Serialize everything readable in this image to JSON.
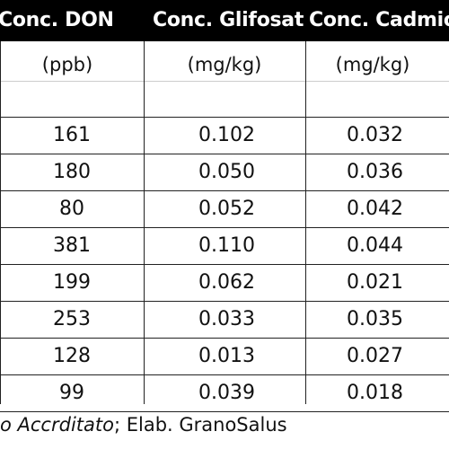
{
  "header": {
    "col_don": "Conc. DON",
    "col_glifosato": "Conc. Glifosato",
    "col_cadmio": "Conc. Cadmio"
  },
  "units": {
    "don": "(ppb)",
    "glifosato": "(mg/kg)",
    "cadmio": "(mg/kg)"
  },
  "rows": [
    {
      "don": "161",
      "glifosato": "0.102",
      "cadmio": "0.032"
    },
    {
      "don": "180",
      "glifosato": "0.050",
      "cadmio": "0.036"
    },
    {
      "don": "80",
      "glifosato": "0.052",
      "cadmio": "0.042"
    },
    {
      "don": "381",
      "glifosato": "0.110",
      "cadmio": "0.044"
    },
    {
      "don": "199",
      "glifosato": "0.062",
      "cadmio": "0.021"
    },
    {
      "don": "253",
      "glifosato": "0.033",
      "cadmio": "0.035"
    },
    {
      "don": "128",
      "glifosato": "0.013",
      "cadmio": "0.027"
    },
    {
      "don": "99",
      "glifosato": "0.039",
      "cadmio": "0.018"
    }
  ],
  "footer": {
    "italic_text": "o Accrditato",
    "rest_text": "; Elab. GranoSalus"
  }
}
